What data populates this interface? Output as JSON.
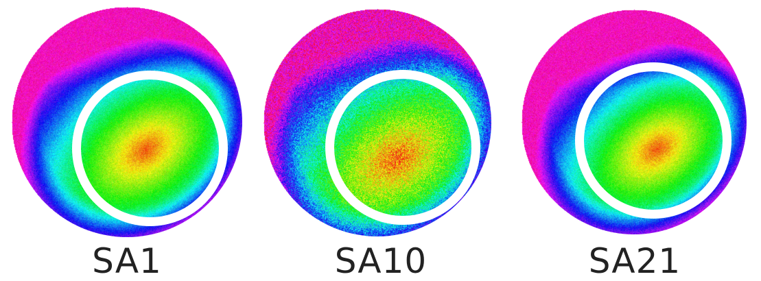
{
  "figure": {
    "panels": [
      {
        "label": "SA1",
        "disc_colormap": "rainbow-hue",
        "noise_level": "low",
        "hotspot_color": "#ff4a00"
      },
      {
        "label": "SA10",
        "disc_colormap": "rainbow-hue",
        "noise_level": "high",
        "hotspot_color": "#ff6a00"
      },
      {
        "label": "SA21",
        "disc_colormap": "rainbow-hue",
        "noise_level": "low",
        "hotspot_color": "#ff3a00"
      }
    ],
    "ring_color": "#ffffff",
    "label_color": "#222222"
  }
}
